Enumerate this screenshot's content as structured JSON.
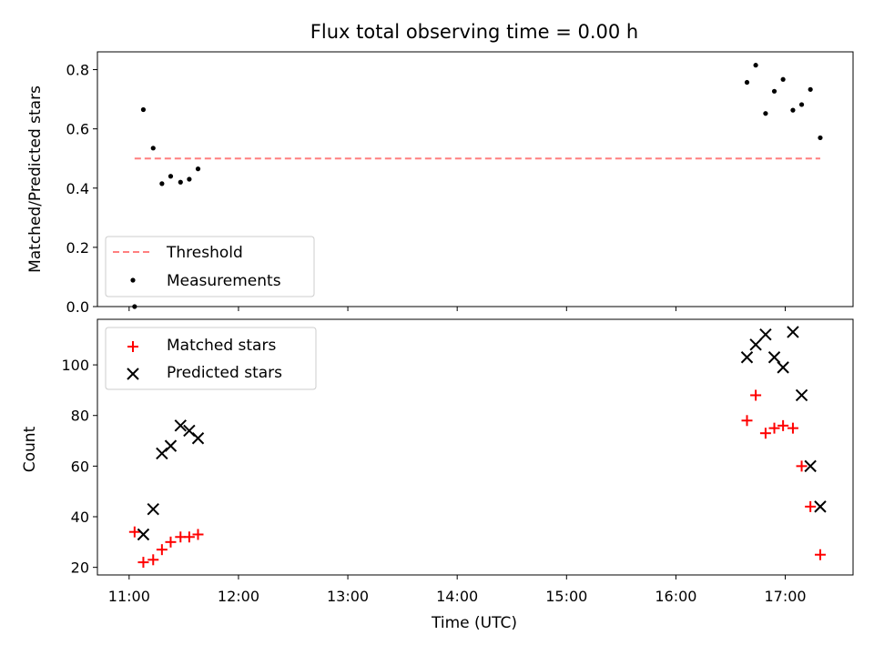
{
  "chart_data": {
    "type": "scatter",
    "title": "Flux total observing time = 0.00 h",
    "xlabel": "Time (UTC)",
    "xlim_hours": [
      10.71,
      17.62
    ],
    "xticks": [
      {
        "value": 11,
        "label": "11:00"
      },
      {
        "value": 12,
        "label": "12:00"
      },
      {
        "value": 13,
        "label": "13:00"
      },
      {
        "value": 14,
        "label": "14:00"
      },
      {
        "value": 15,
        "label": "15:00"
      },
      {
        "value": 16,
        "label": "16:00"
      },
      {
        "value": 17,
        "label": "17:00"
      }
    ],
    "panels": [
      {
        "ylabel": "Matched/Predicted stars",
        "ylim": [
          0,
          0.86
        ],
        "yticks": [
          {
            "value": 0.0,
            "label": "0.0"
          },
          {
            "value": 0.2,
            "label": "0.2"
          },
          {
            "value": 0.4,
            "label": "0.4"
          },
          {
            "value": 0.6,
            "label": "0.6"
          },
          {
            "value": 0.8,
            "label": "0.8"
          }
        ],
        "legend_position": "lower-left",
        "series": [
          {
            "name": "Threshold",
            "kind": "dashed-line",
            "color": "#ff7f7f",
            "x": [
              11.05,
              17.32
            ],
            "y": [
              0.5,
              0.5
            ]
          },
          {
            "name": "Measurements",
            "kind": "dot",
            "color": "#000000",
            "x": [
              11.05,
              11.13,
              11.22,
              11.3,
              11.38,
              11.47,
              11.55,
              11.63,
              16.65,
              16.73,
              16.82,
              16.9,
              16.98,
              17.07,
              17.15,
              17.23,
              17.32
            ],
            "y": [
              0.0,
              0.665,
              0.535,
              0.415,
              0.44,
              0.42,
              0.43,
              0.465,
              0.757,
              0.815,
              0.652,
              0.727,
              0.767,
              0.663,
              0.682,
              0.733,
              0.57
            ]
          }
        ]
      },
      {
        "ylabel": "Count",
        "ylim": [
          17,
          118
        ],
        "yticks": [
          {
            "value": 20,
            "label": "20"
          },
          {
            "value": 40,
            "label": "40"
          },
          {
            "value": 60,
            "label": "60"
          },
          {
            "value": 80,
            "label": "80"
          },
          {
            "value": 100,
            "label": "100"
          }
        ],
        "legend_position": "upper-left",
        "series": [
          {
            "name": "Matched stars",
            "kind": "plus",
            "color": "#ff0000",
            "x": [
              11.05,
              11.13,
              11.22,
              11.3,
              11.38,
              11.47,
              11.55,
              11.63,
              16.65,
              16.73,
              16.82,
              16.9,
              16.98,
              17.07,
              17.15,
              17.23,
              17.32
            ],
            "y": [
              34,
              22,
              23,
              27,
              30,
              32,
              32,
              33,
              78,
              88,
              73,
              75,
              76,
              75,
              60,
              44,
              25
            ]
          },
          {
            "name": "Predicted stars",
            "kind": "cross",
            "color": "#000000",
            "x": [
              11.13,
              11.22,
              11.3,
              11.38,
              11.47,
              11.55,
              11.63,
              16.65,
              16.73,
              16.82,
              16.9,
              16.98,
              17.07,
              17.15,
              17.23,
              17.32
            ],
            "y": [
              33,
              43,
              65,
              68,
              76,
              74,
              71,
              103,
              108,
              112,
              103,
              99,
              113,
              88,
              60,
              44
            ]
          }
        ]
      }
    ]
  }
}
